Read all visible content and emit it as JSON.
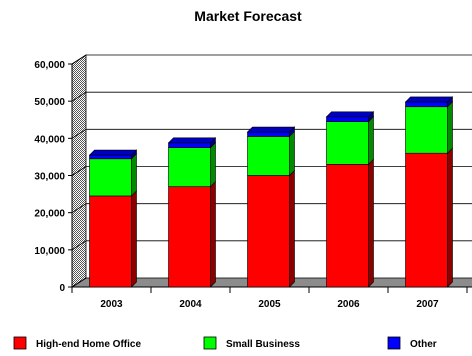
{
  "chart_data": {
    "type": "bar",
    "stacked": true,
    "title": "Market Forecast",
    "xlabel": "",
    "ylabel": "",
    "categories": [
      "2003",
      "2004",
      "2005",
      "2006",
      "2007"
    ],
    "ylim": [
      0,
      60000
    ],
    "yticks": [
      "0",
      "10,000",
      "20,000",
      "30,000",
      "40,000",
      "50,000",
      "60,000"
    ],
    "yticks_values": [
      0,
      10000,
      20000,
      30000,
      40000,
      50000,
      60000
    ],
    "grid": true,
    "legend_position": "bottom",
    "series": [
      {
        "name": "High-end Home Office",
        "color": "#ff0000",
        "values": [
          24500,
          27000,
          30000,
          33000,
          36000
        ]
      },
      {
        "name": "Small Business",
        "color": "#00ff00",
        "values": [
          10000,
          10500,
          10500,
          11500,
          12500
        ]
      },
      {
        "name": "Other",
        "color": "#0000ff",
        "values": [
          1000,
          1300,
          1200,
          1300,
          1300
        ]
      }
    ]
  }
}
